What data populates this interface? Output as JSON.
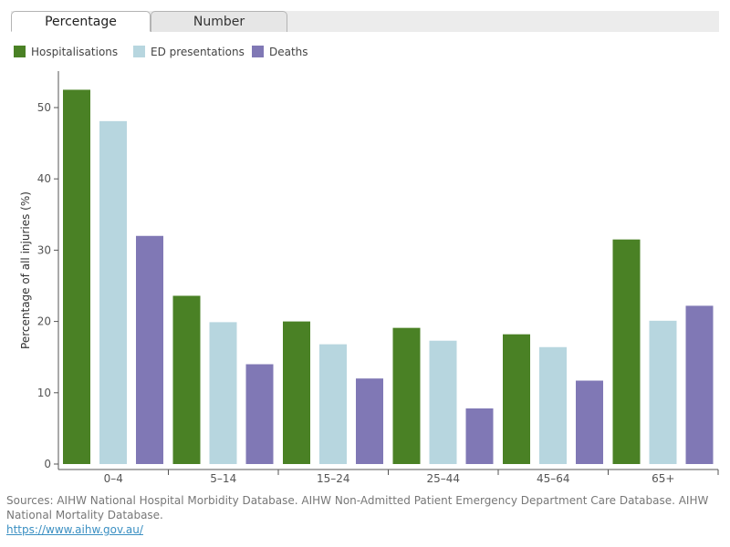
{
  "tabs": [
    {
      "label": "Percentage",
      "active": true
    },
    {
      "label": "Number",
      "active": false
    }
  ],
  "colors": {
    "hospitalisations": "#4a8125",
    "ed": "#b7d6df",
    "deaths": "#8078b5"
  },
  "chart_data": {
    "type": "bar",
    "title": "",
    "xlabel": "",
    "ylabel": "Percentage of all injuries (%)",
    "ylim": [
      0,
      55
    ],
    "yticks": [
      0,
      10,
      20,
      30,
      40,
      50
    ],
    "categories": [
      "0–4",
      "5–14",
      "15–24",
      "25–44",
      "45–64",
      "65+"
    ],
    "series": [
      {
        "name": "Hospitalisations",
        "color": "#4a8125",
        "values": [
          52.5,
          23.6,
          20.0,
          19.1,
          18.2,
          31.5
        ]
      },
      {
        "name": "ED presentations",
        "color": "#b7d6df",
        "values": [
          48.1,
          19.9,
          16.8,
          17.3,
          16.4,
          20.1
        ]
      },
      {
        "name": "Deaths",
        "color": "#8078b5",
        "values": [
          32.0,
          14.0,
          12.0,
          7.8,
          11.7,
          22.2
        ]
      }
    ],
    "grid": false,
    "legend": "top-left"
  },
  "footer": {
    "sources": "Sources: AIHW National Hospital Morbidity Database. AIHW Non-Admitted Patient Emergency Department Care Database. AIHW National Mortality Database.",
    "link": "https://www.aihw.gov.au/"
  }
}
